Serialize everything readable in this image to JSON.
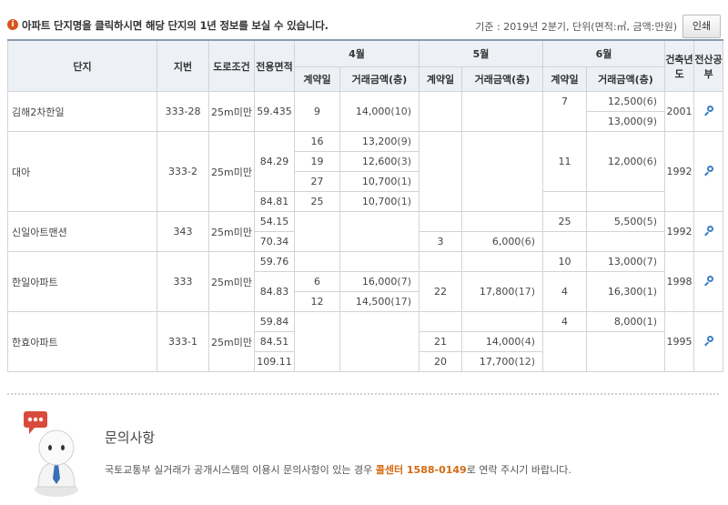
{
  "header": {
    "notice": "아파트 단지명을 클릭하시면 해당 단지의 1년 정보를 보실 수 있습니다.",
    "basis": "기준 : 2019년 2분기, 단위(면적:㎡, 금액:만원)",
    "print_label": "인쇄",
    "info_icon": "i"
  },
  "table": {
    "headers": {
      "complex": "단지",
      "lot": "지번",
      "road": "도로조건",
      "area": "전용면적",
      "month_4": "4월",
      "month_5": "5월",
      "month_6": "6월",
      "built": "건축년도",
      "search": "전산공부",
      "contract_day": "계약일",
      "amount": "거래금액(층)"
    },
    "rows": [
      {
        "name": "김해2차한일",
        "lot": "333-28",
        "road": "25m미만",
        "built": "2001",
        "r": [
          {
            "area": "59.435",
            "a4d": "9",
            "a4": "14,000",
            "a4f": "(10)",
            "a5d": "",
            "a5": "",
            "a5f": "",
            "a6d": "7",
            "a6": "12,500",
            "a6f": "(6)"
          },
          {
            "area": "",
            "a4d": "",
            "a4": "",
            "a4f": "",
            "a5d": "",
            "a5": "",
            "a5f": "",
            "a6d": "",
            "a6": "13,000",
            "a6f": "(9)"
          }
        ]
      },
      {
        "name": "대아",
        "lot": "333-2",
        "road": "25m미만",
        "built": "1992",
        "r": [
          {
            "area": "84.29",
            "a4d": "16",
            "a4": "13,200",
            "a4f": "(9)",
            "a5d": "",
            "a5": "",
            "a5f": "",
            "a6d": "11",
            "a6": "12,000",
            "a6f": "(6)"
          },
          {
            "area": "",
            "a4d": "19",
            "a4": "12,600",
            "a4f": "(3)"
          },
          {
            "area": "",
            "a4d": "27",
            "a4": "10,700",
            "a4f": "(1)"
          },
          {
            "area": "84.81",
            "a4d": "25",
            "a4": "10,700",
            "a4f": "(1)",
            "a5d": "",
            "a5": "",
            "a5f": "",
            "a6d": "",
            "a6": "",
            "a6f": ""
          }
        ]
      },
      {
        "name": "신일아트맨션",
        "lot": "343",
        "road": "25m미만",
        "built": "1992",
        "r": [
          {
            "area": "54.15",
            "a4d": "",
            "a4": "",
            "a4f": "",
            "a5d": "",
            "a5": "",
            "a5f": "",
            "a6d": "25",
            "a6": "5,500",
            "a6f": "(5)"
          },
          {
            "area": "70.34",
            "a4d": "",
            "a4": "",
            "a4f": "",
            "a5d": "3",
            "a5": "6,000",
            "a5f": "(6)",
            "a6d": "",
            "a6": "",
            "a6f": ""
          }
        ]
      },
      {
        "name": "한일아파트",
        "lot": "333",
        "road": "25m미만",
        "built": "1998",
        "r": [
          {
            "area": "59.76",
            "a4d": "",
            "a4": "",
            "a4f": "",
            "a5d": "",
            "a5": "",
            "a5f": "",
            "a6d": "10",
            "a6": "13,000",
            "a6f": "(7)"
          },
          {
            "area": "84.83",
            "a4d": "6",
            "a4": "16,000",
            "a4f": "(7)",
            "a5d": "22",
            "a5": "17,800",
            "a5f": "(17)",
            "a6d": "4",
            "a6": "16,300",
            "a6f": "(1)"
          },
          {
            "area": "",
            "a4d": "12",
            "a4": "14,500",
            "a4f": "(17)"
          }
        ]
      },
      {
        "name": "한효아파트",
        "lot": "333-1",
        "road": "25m미만",
        "built": "1995",
        "r": [
          {
            "area": "59.84",
            "a4d": "",
            "a4": "",
            "a4f": "",
            "a5d": "",
            "a5": "",
            "a5f": "",
            "a6d": "4",
            "a6": "8,000",
            "a6f": "(1)"
          },
          {
            "area": "84.51",
            "a4d": "",
            "a4": "",
            "a4f": "",
            "a5d": "21",
            "a5": "14,000",
            "a5f": "(4)",
            "a6d": "",
            "a6": "",
            "a6f": ""
          },
          {
            "area": "109.11",
            "a4d": "",
            "a4": "",
            "a4f": "",
            "a5d": "20",
            "a5": "17,700",
            "a5f": "(12)",
            "a6d": "",
            "a6": "",
            "a6f": ""
          }
        ]
      }
    ]
  },
  "inquiry": {
    "title": "문의사항",
    "text_before": "국토교통부 실거래가 공개시스템의 이용시 문의사항이 있는 경우 ",
    "phone": "콜센터 1588-0149",
    "text_after": "로 연락 주시기 바랍니다."
  },
  "colors": {
    "accent": "#d46a12",
    "header_bg": "#edf1f6",
    "border": "#cfd4da"
  }
}
